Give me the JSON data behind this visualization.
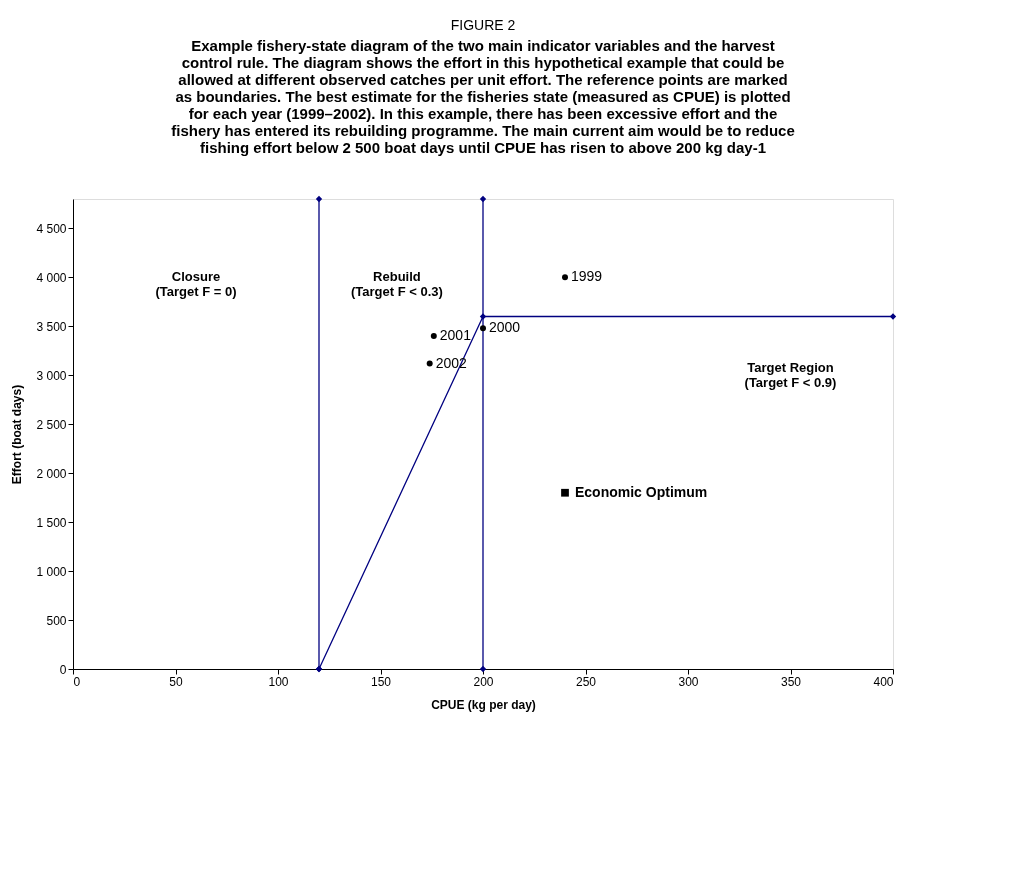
{
  "chart_data": {
    "type": "scatter",
    "title": "FIGURE 2",
    "subtitle": "Example fishery-state diagram of the two main indicator variables and the harvest control rule. The diagram shows the effort in this hypothetical example that could be allowed at different observed catches per unit effort. The reference points are marked as boundaries. The best estimate for the fisheries state (measured as CPUE) is plotted for each year (1999–2002). In this example, there has been excessive effort and the fishery has entered its rebuilding programme. The main current aim would be to reduce fishing effort below 2 500 boat days until CPUE has risen to above 200 kg day-1",
    "xlabel": "CPUE (kg per day)",
    "ylabel": "Effort (boat days)",
    "xlim": [
      0,
      400
    ],
    "xticks": [
      0,
      50,
      100,
      150,
      200,
      250,
      300,
      350,
      400
    ],
    "ylim": [
      0,
      4800
    ],
    "yticks": [
      0,
      500,
      {
        "value": 1000,
        "label": "1 000"
      },
      {
        "value": 1500,
        "label": "1 500"
      },
      {
        "value": 2000,
        "label": "2 000"
      },
      {
        "value": 2500,
        "label": "2 500"
      },
      {
        "value": 3000,
        "label": "3 000"
      },
      {
        "value": 3500,
        "label": "3 500"
      },
      {
        "value": 4000,
        "label": "4 000"
      },
      {
        "value": 4500,
        "label": "4 500"
      }
    ],
    "series": [
      {
        "type": "line",
        "color": "#000080",
        "marker": "diamond",
        "x": [
          120,
          120
        ],
        "values": [
          0,
          4800
        ]
      },
      {
        "type": "line",
        "color": "#000080",
        "marker": "diamond",
        "x": [
          200,
          200
        ],
        "values": [
          0,
          4800
        ]
      },
      {
        "type": "line",
        "color": "#000080",
        "marker": "diamond",
        "x": [
          120,
          200,
          400
        ],
        "values": [
          0,
          3600,
          3600
        ]
      },
      {
        "color": "#000000",
        "marker": "circle",
        "x": [
          240,
          200,
          176,
          174
        ],
        "values": [
          4000,
          3480,
          3400,
          3120
        ]
      },
      {
        "name": "Economic Optimum",
        "color": "#000000",
        "marker": "square",
        "x": [
          240
        ],
        "values": [
          1800
        ]
      }
    ],
    "annotations": [
      {
        "text": "1999",
        "x": 240,
        "y": 4000
      },
      {
        "text": "2000",
        "x": 200,
        "y": 3480
      },
      {
        "text": "2001",
        "x": 176,
        "y": 3400
      },
      {
        "text": "2002",
        "x": 174,
        "y": 3120
      },
      "Closure\n(Target F = 0)",
      "Rebuild\n(Target F < 0.3)",
      "Target Region\n(Target F < 0.9)"
    ]
  }
}
